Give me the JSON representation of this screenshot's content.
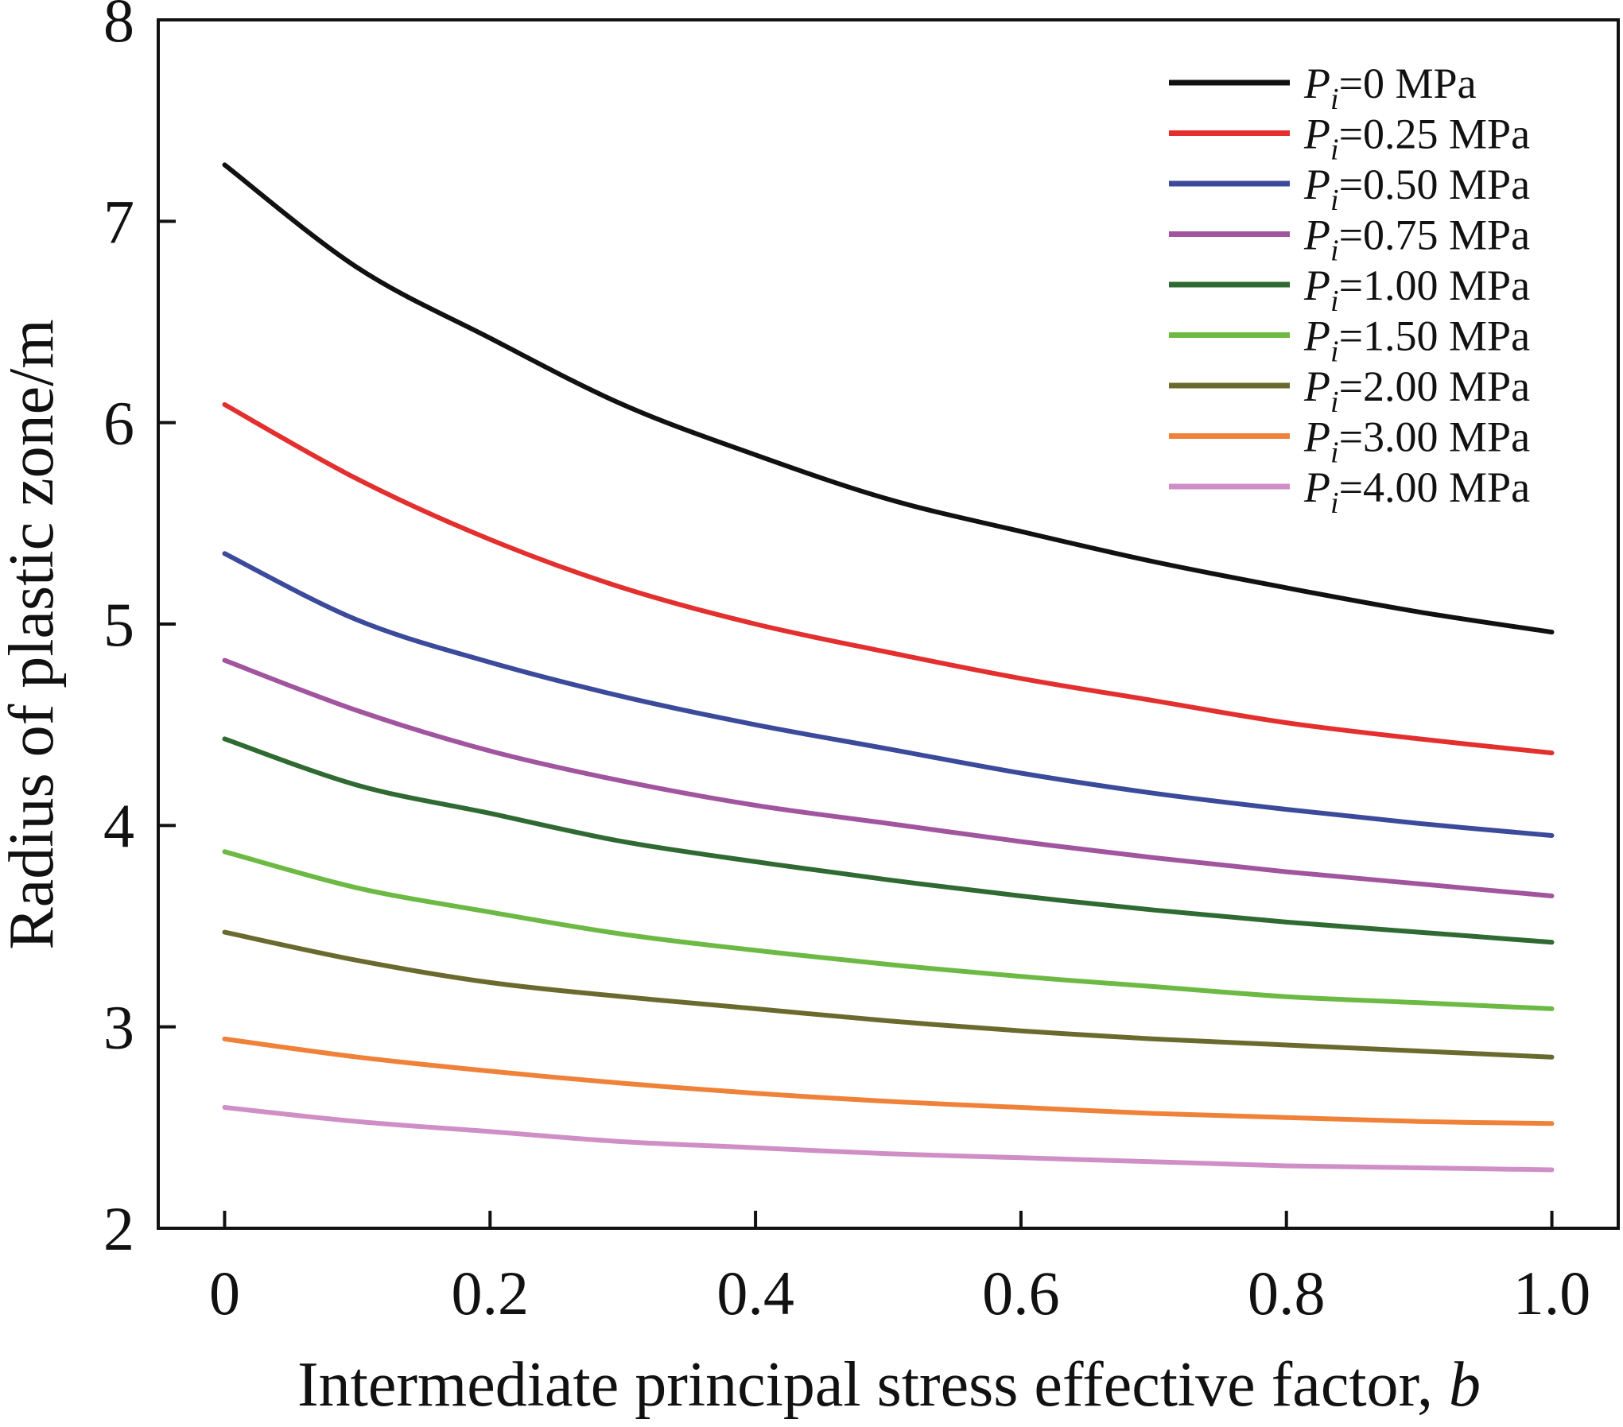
{
  "chart_data": {
    "type": "line",
    "title": "",
    "xlabel": "Intermediate principal stress effective factor,",
    "xlabel_var": "b",
    "ylabel": "Radius of plastic zone/m",
    "xlim": [
      -0.05,
      1.05
    ],
    "ylim": [
      2,
      8
    ],
    "xticks": [
      0,
      0.2,
      0.4,
      0.6,
      0.8,
      1.0
    ],
    "xtick_labels": [
      "0",
      "0.2",
      "0.4",
      "0.6",
      "0.8",
      "1.0"
    ],
    "yticks": [
      2,
      3,
      4,
      5,
      6,
      7,
      8
    ],
    "ytick_labels": [
      "2",
      "3",
      "4",
      "5",
      "6",
      "7",
      "8"
    ],
    "grid": false,
    "legend_position": "top-right",
    "x": [
      0,
      0.1,
      0.2,
      0.3,
      0.4,
      0.5,
      0.6,
      0.7,
      0.8,
      0.9,
      1.0
    ],
    "series": [
      {
        "name_var": "P",
        "name_sub": "i",
        "name_rest": "=0 MPa",
        "color": "#111111",
        "values": [
          7.28,
          6.77,
          6.42,
          6.09,
          5.84,
          5.62,
          5.46,
          5.31,
          5.18,
          5.06,
          4.96
        ]
      },
      {
        "name_var": "P",
        "name_sub": "i",
        "name_rest": "=0.25 MPa",
        "color": "#e3302f",
        "values": [
          6.09,
          5.72,
          5.42,
          5.18,
          5.0,
          4.86,
          4.73,
          4.62,
          4.51,
          4.43,
          4.36
        ]
      },
      {
        "name_var": "P",
        "name_sub": "i",
        "name_rest": "=0.50 MPa",
        "color": "#3b4a9a",
        "values": [
          5.35,
          5.02,
          4.81,
          4.64,
          4.5,
          4.38,
          4.26,
          4.16,
          4.08,
          4.01,
          3.95
        ]
      },
      {
        "name_var": "P",
        "name_sub": "i",
        "name_rest": "=0.75 MPa",
        "color": "#a1559f",
        "values": [
          4.82,
          4.57,
          4.37,
          4.22,
          4.1,
          4.01,
          3.92,
          3.84,
          3.77,
          3.71,
          3.65
        ]
      },
      {
        "name_var": "P",
        "name_sub": "i",
        "name_rest": "=1.00 MPa",
        "color": "#2f6a32",
        "values": [
          4.43,
          4.2,
          4.06,
          3.92,
          3.82,
          3.73,
          3.65,
          3.58,
          3.52,
          3.47,
          3.42
        ]
      },
      {
        "name_var": "P",
        "name_sub": "i",
        "name_rest": "=1.50 MPa",
        "color": "#6cb944",
        "values": [
          3.87,
          3.69,
          3.57,
          3.46,
          3.38,
          3.31,
          3.25,
          3.2,
          3.15,
          3.12,
          3.09
        ]
      },
      {
        "name_var": "P",
        "name_sub": "i",
        "name_rest": "=2.00 MPa",
        "color": "#6b6a2e",
        "values": [
          3.47,
          3.33,
          3.22,
          3.15,
          3.09,
          3.03,
          2.98,
          2.94,
          2.91,
          2.88,
          2.85
        ]
      },
      {
        "name_var": "P",
        "name_sub": "i",
        "name_rest": "=3.00 MPa",
        "color": "#ef8138",
        "values": [
          2.94,
          2.85,
          2.78,
          2.72,
          2.67,
          2.63,
          2.6,
          2.57,
          2.55,
          2.53,
          2.52
        ]
      },
      {
        "name_var": "P",
        "name_sub": "i",
        "name_rest": "=4.00 MPa",
        "color": "#cf8fc6",
        "values": [
          2.6,
          2.53,
          2.48,
          2.43,
          2.4,
          2.37,
          2.35,
          2.33,
          2.31,
          2.3,
          2.29
        ]
      }
    ]
  }
}
